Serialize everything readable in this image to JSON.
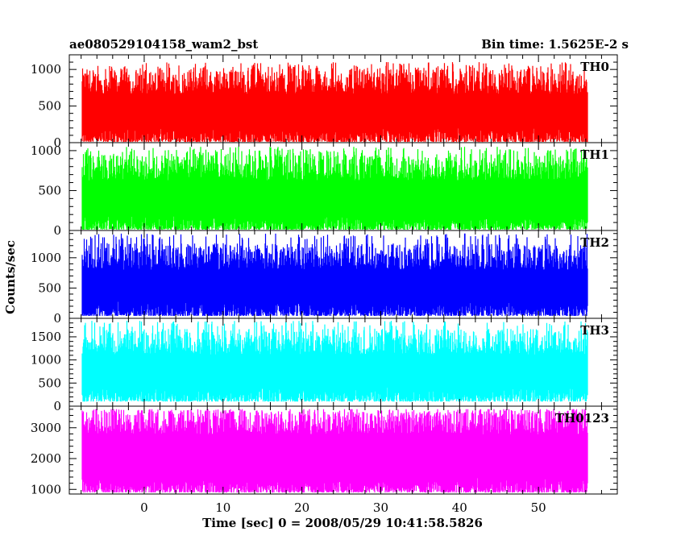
{
  "chart_data": {
    "type": "line",
    "title_left": "ae080529104158_wam2_bst",
    "title_right": "Bin time: 1.5625E-2 s",
    "xlabel": "Time [sec] 0 = 2008/05/29 10:41:58.5826",
    "ylabel": "Counts/sec",
    "xlim": [
      -9.5,
      60
    ],
    "x_ticks": [
      0,
      10,
      20,
      30,
      40,
      50
    ],
    "x_data_range": [
      -7.8,
      56.2
    ],
    "grid": false,
    "panels": [
      {
        "name": "TH0",
        "color": "#ff0000",
        "ylim": [
          0,
          1200
        ],
        "y_ticks": [
          0,
          500,
          1000
        ],
        "baseline": 10,
        "peak": 1100,
        "mean": 470
      },
      {
        "name": "TH1",
        "color": "#00ff00",
        "ylim": [
          0,
          1100
        ],
        "y_ticks": [
          0,
          500,
          1000
        ],
        "baseline": 10,
        "peak": 1050,
        "mean": 440
      },
      {
        "name": "TH2",
        "color": "#0000ff",
        "ylim": [
          0,
          1450
        ],
        "y_ticks": [
          0,
          500,
          1000
        ],
        "baseline": 40,
        "peak": 1400,
        "mean": 560
      },
      {
        "name": "TH3",
        "color": "#00ffff",
        "ylim": [
          0,
          1900
        ],
        "y_ticks": [
          0,
          500,
          1000,
          1500
        ],
        "baseline": 100,
        "peak": 1850,
        "mean": 800
      },
      {
        "name": "TH0123",
        "color": "#ff00ff",
        "ylim": [
          850,
          3700
        ],
        "y_ticks": [
          1000,
          2000,
          3000
        ],
        "baseline": 900,
        "peak": 3600,
        "mean": 2300
      }
    ]
  }
}
